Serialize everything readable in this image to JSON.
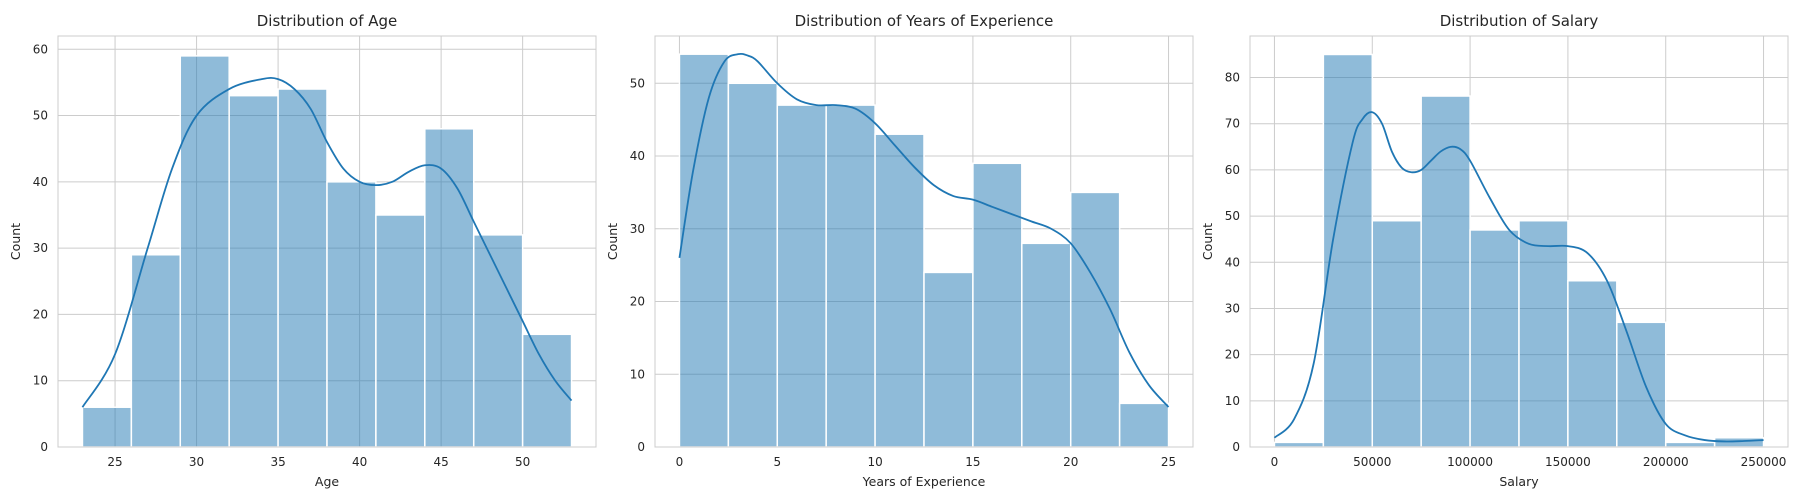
{
  "theme": {
    "bar_color": "#1f77b4",
    "line_color": "#1f77b4"
  },
  "chart_data": [
    {
      "type": "bar",
      "title": "Distribution of Age",
      "xlabel": "Age",
      "ylabel": "Count",
      "xlim": [
        21.5,
        54.5
      ],
      "ylim": [
        0,
        62
      ],
      "xticks": [
        25,
        30,
        35,
        40,
        45,
        50
      ],
      "yticks": [
        0,
        10,
        20,
        30,
        40,
        50,
        60
      ],
      "grid": true,
      "bins": [
        {
          "x0": 23,
          "x1": 26,
          "count": 6
        },
        {
          "x0": 26,
          "x1": 29,
          "count": 29
        },
        {
          "x0": 29,
          "x1": 32,
          "count": 59
        },
        {
          "x0": 32,
          "x1": 35,
          "count": 53
        },
        {
          "x0": 35,
          "x1": 38,
          "count": 54
        },
        {
          "x0": 38,
          "x1": 41,
          "count": 40
        },
        {
          "x0": 41,
          "x1": 44,
          "count": 35
        },
        {
          "x0": 44,
          "x1": 47,
          "count": 48
        },
        {
          "x0": 47,
          "x1": 50,
          "count": 32
        },
        {
          "x0": 50,
          "x1": 53,
          "count": 17
        }
      ],
      "kde": {
        "x": [
          23,
          25,
          27,
          28.5,
          30,
          32,
          34,
          35,
          36,
          37,
          38,
          39,
          40,
          41,
          42,
          43,
          44,
          45,
          46,
          47,
          48,
          49,
          50,
          51,
          52,
          53
        ],
        "y": [
          6,
          14,
          30,
          42,
          50,
          54,
          55.5,
          55.5,
          54,
          51,
          46,
          42,
          40,
          39.5,
          40,
          41.5,
          42.5,
          42,
          39,
          34,
          29,
          24,
          19,
          14,
          10,
          7
        ]
      }
    },
    {
      "type": "bar",
      "title": "Distribution of Years of Experience",
      "xlabel": "Years of Experience",
      "ylabel": "Count",
      "xlim": [
        -1.25,
        26.25
      ],
      "ylim": [
        0,
        56.5
      ],
      "xticks": [
        0,
        5,
        10,
        15,
        20,
        25
      ],
      "yticks": [
        0,
        10,
        20,
        30,
        40,
        50
      ],
      "grid": true,
      "bins": [
        {
          "x0": 0,
          "x1": 2.5,
          "count": 54
        },
        {
          "x0": 2.5,
          "x1": 5,
          "count": 50
        },
        {
          "x0": 5,
          "x1": 7.5,
          "count": 47
        },
        {
          "x0": 7.5,
          "x1": 10,
          "count": 47
        },
        {
          "x0": 10,
          "x1": 12.5,
          "count": 43
        },
        {
          "x0": 12.5,
          "x1": 15,
          "count": 24
        },
        {
          "x0": 15,
          "x1": 17.5,
          "count": 39
        },
        {
          "x0": 17.5,
          "x1": 20,
          "count": 28
        },
        {
          "x0": 20,
          "x1": 22.5,
          "count": 35
        },
        {
          "x0": 22.5,
          "x1": 25,
          "count": 6
        }
      ],
      "kde": {
        "x": [
          0,
          0.7,
          1.5,
          2.3,
          3,
          3.5,
          4,
          5,
          6,
          7,
          8,
          9,
          10,
          11,
          12,
          13,
          14,
          15,
          16,
          17,
          18,
          19,
          20,
          21,
          22,
          23,
          24,
          25
        ],
        "y": [
          26,
          38,
          48,
          53,
          54,
          53.8,
          53,
          50,
          47.8,
          47,
          47,
          46.5,
          44.5,
          41.5,
          38.5,
          36,
          34.5,
          34,
          33,
          32,
          31,
          30,
          28,
          24,
          19,
          13,
          8.5,
          5.5
        ]
      }
    },
    {
      "type": "bar",
      "title": "Distribution of Salary",
      "xlabel": "Salary",
      "ylabel": "Count",
      "xlim": [
        -12500,
        262500
      ],
      "ylim": [
        0,
        89
      ],
      "xticks": [
        0,
        50000,
        100000,
        150000,
        200000,
        250000
      ],
      "yticks": [
        0,
        10,
        20,
        30,
        40,
        50,
        60,
        70,
        80
      ],
      "grid": true,
      "bins": [
        {
          "x0": 0,
          "x1": 25000,
          "count": 1
        },
        {
          "x0": 25000,
          "x1": 50000,
          "count": 85
        },
        {
          "x0": 50000,
          "x1": 75000,
          "count": 49
        },
        {
          "x0": 75000,
          "x1": 100000,
          "count": 76
        },
        {
          "x0": 100000,
          "x1": 125000,
          "count": 47
        },
        {
          "x0": 125000,
          "x1": 150000,
          "count": 49
        },
        {
          "x0": 150000,
          "x1": 175000,
          "count": 36
        },
        {
          "x0": 175000,
          "x1": 200000,
          "count": 27
        },
        {
          "x0": 200000,
          "x1": 225000,
          "count": 1
        },
        {
          "x0": 225000,
          "x1": 250000,
          "count": 2
        }
      ],
      "kde": {
        "x": [
          0,
          10000,
          20000,
          30000,
          40000,
          45000,
          50000,
          55000,
          60000,
          65000,
          70000,
          75000,
          80000,
          85000,
          90000,
          95000,
          100000,
          110000,
          120000,
          130000,
          140000,
          150000,
          160000,
          170000,
          180000,
          190000,
          200000,
          210000,
          220000,
          230000,
          240000,
          250000
        ],
        "y": [
          2,
          6,
          18,
          45,
          66,
          71,
          72.5,
          70,
          64,
          60.5,
          59.5,
          60,
          62,
          64,
          65,
          64.5,
          62,
          54,
          47,
          44,
          43.5,
          43.5,
          42,
          36,
          25,
          13,
          5,
          2.5,
          1.5,
          1.2,
          1.3,
          1.5
        ]
      }
    }
  ]
}
